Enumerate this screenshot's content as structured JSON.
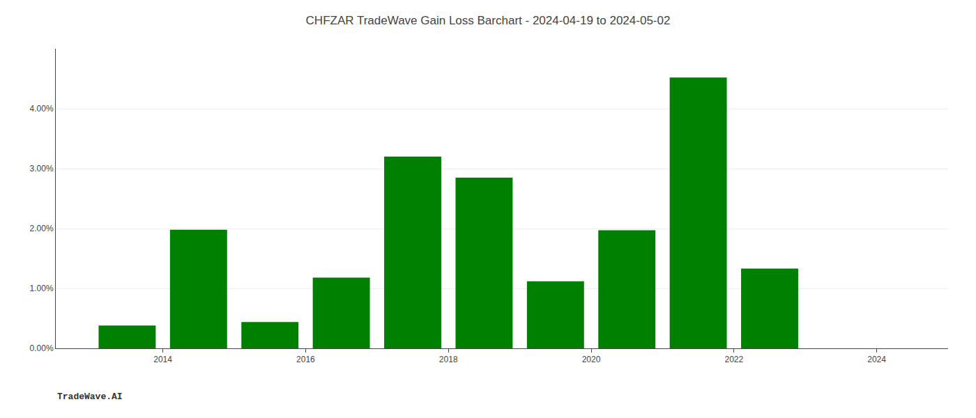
{
  "chart_data": {
    "type": "bar",
    "title": "CHFZAR TradeWave Gain Loss Barchart - 2024-04-19 to 2024-05-02",
    "annotations": [
      "TradeWave.AI"
    ],
    "x": [
      2013.5,
      2014.5,
      2015.5,
      2016.5,
      2017.5,
      2018.5,
      2019.5,
      2020.5,
      2021.5,
      2022.5
    ],
    "values": [
      0.0038,
      0.0198,
      0.0044,
      0.0118,
      0.032,
      0.0285,
      0.0112,
      0.0197,
      0.0452,
      0.0133
    ],
    "color": "#008000",
    "xlim": [
      2012.5,
      2025.0
    ],
    "xticks": [
      2014,
      2016,
      2018,
      2020,
      2022,
      2024
    ],
    "ylim": [
      0,
      0.05
    ],
    "yticks": [
      {
        "value": 0.0,
        "label": "0.00%"
      },
      {
        "value": 0.01,
        "label": "1.00%"
      },
      {
        "value": 0.02,
        "label": "2.00%"
      },
      {
        "value": 0.03,
        "label": "3.00%"
      },
      {
        "value": 0.04,
        "label": "4.00%"
      }
    ],
    "grid": true
  }
}
